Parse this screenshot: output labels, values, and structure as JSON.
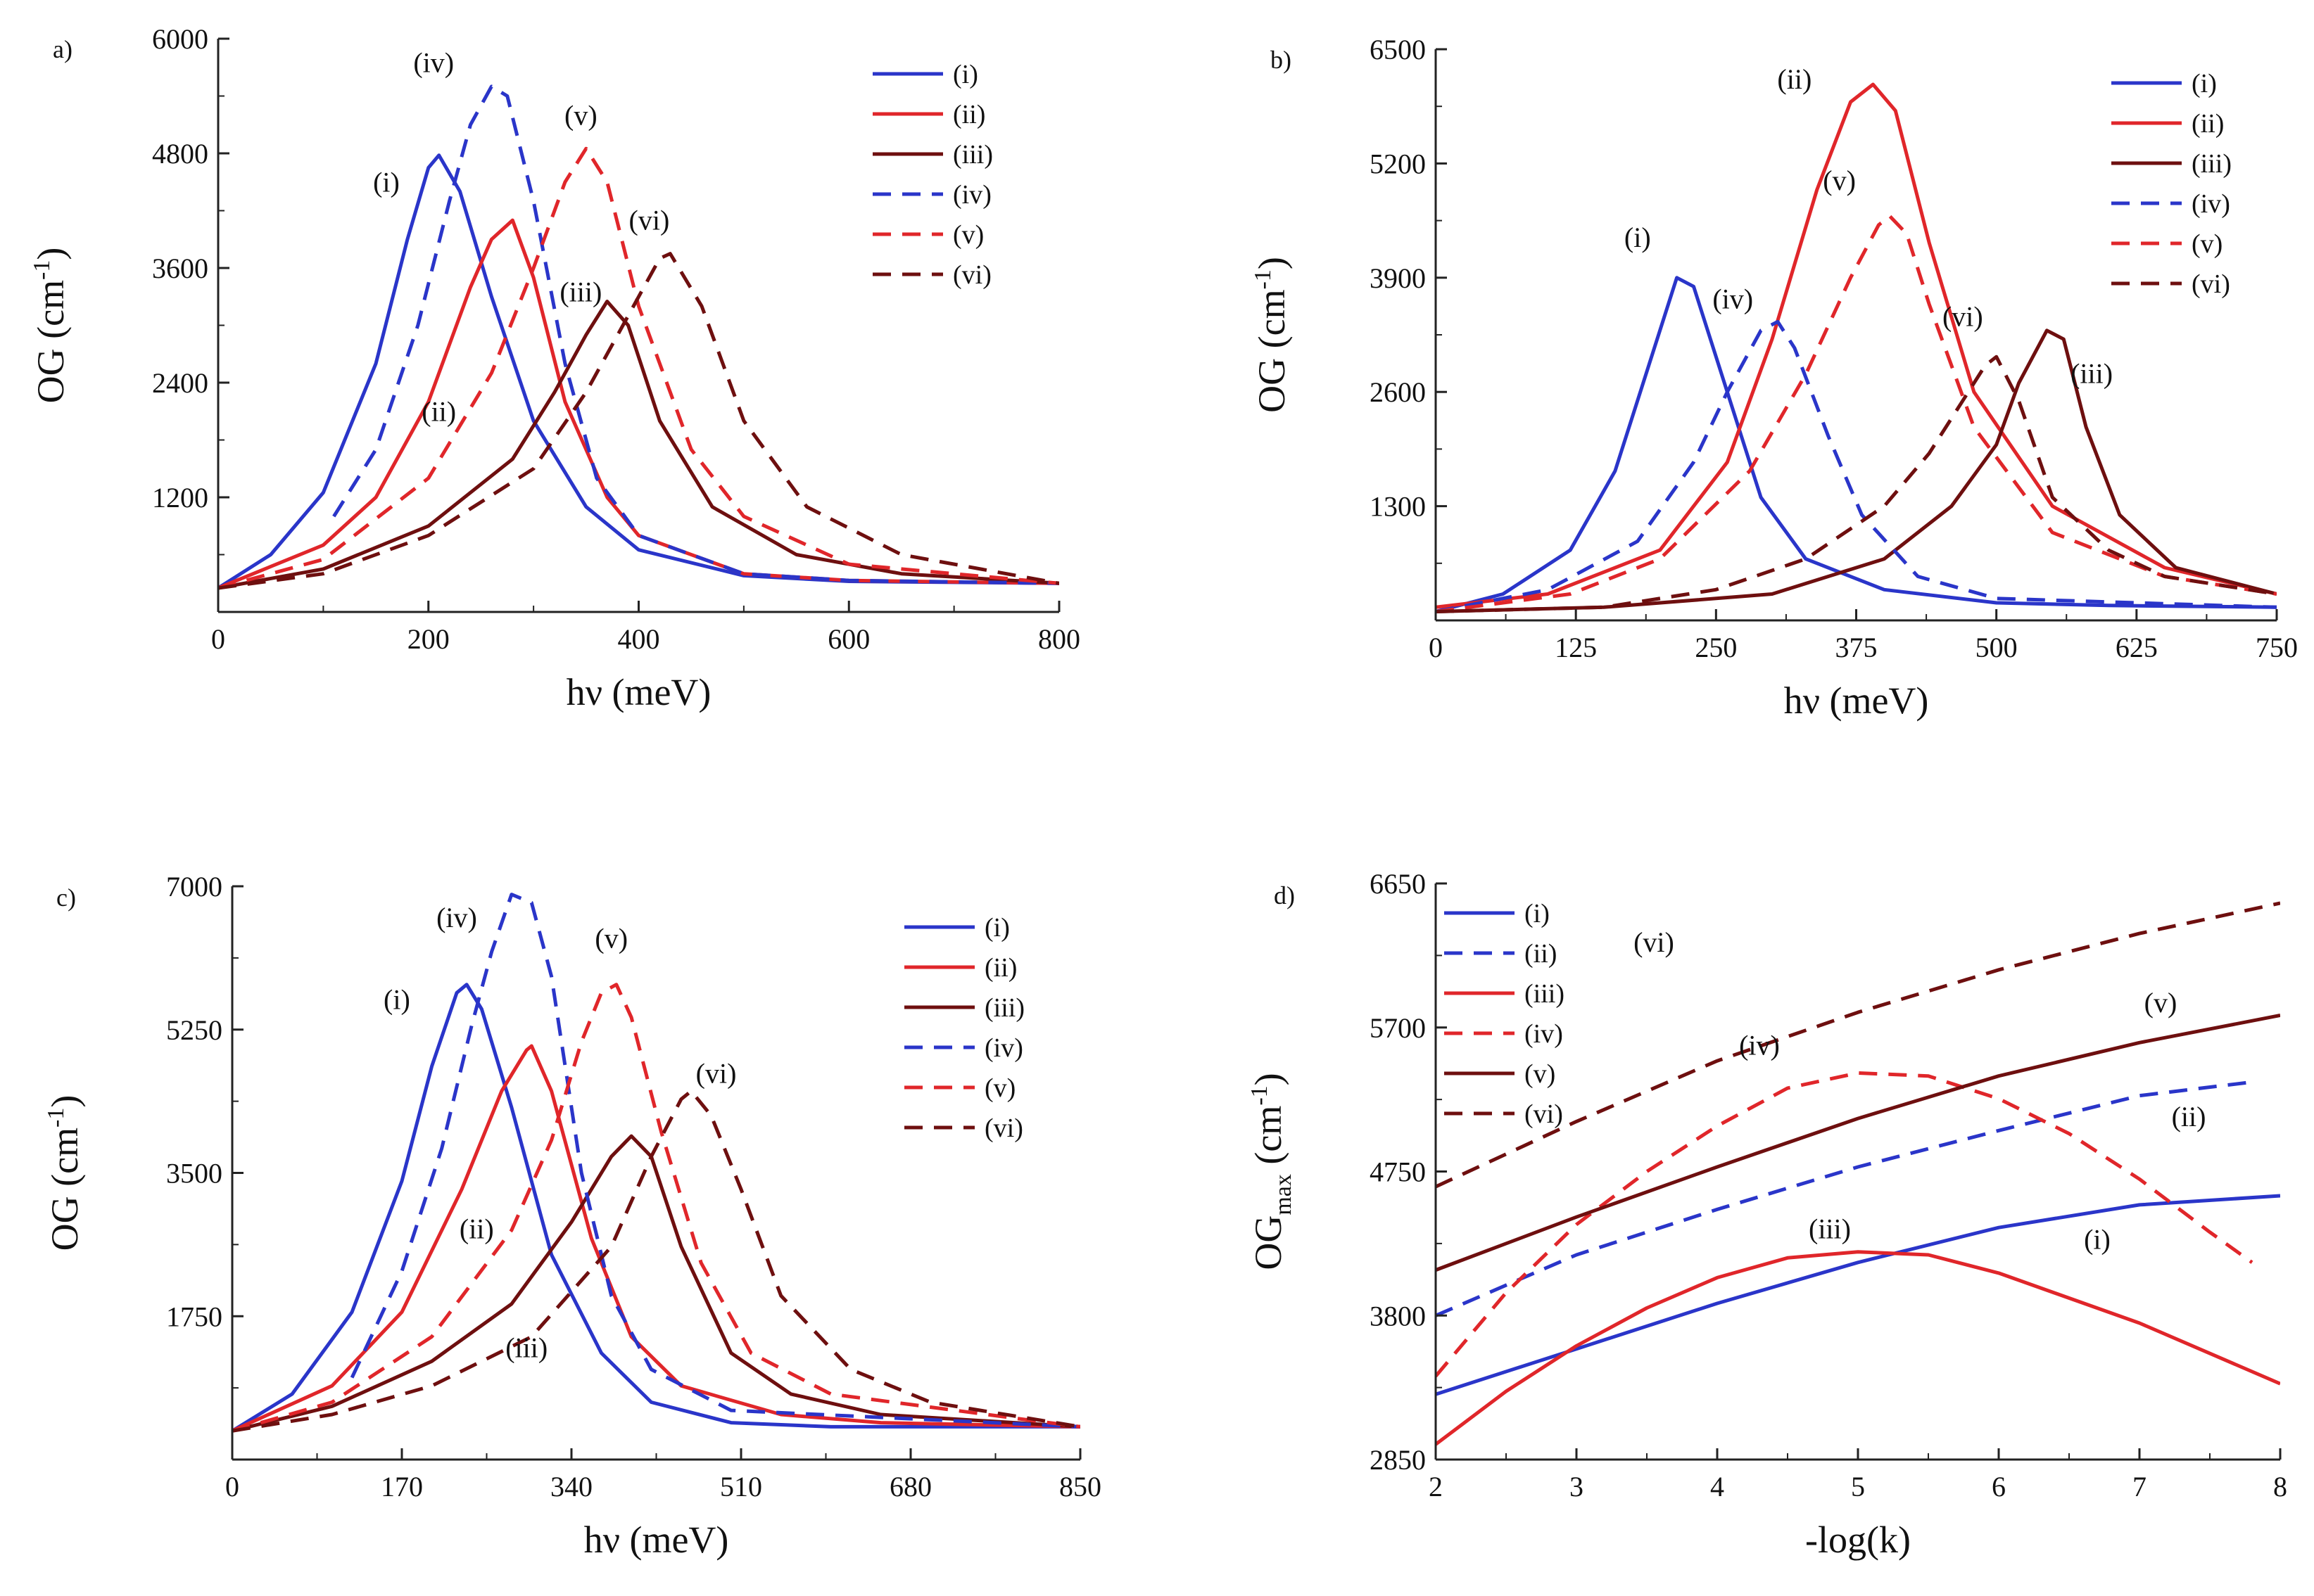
{
  "figure": {
    "colors": {
      "blue": "#2a35c9",
      "red": "#e0262a",
      "darkred": "#6e0f0f",
      "axis": "#222222"
    }
  },
  "chart_data": [
    {
      "panel": "a)",
      "type": "line",
      "xlabel": "hν (meV)",
      "ylabel": "OG (cm",
      "ylabel_sup": "-1",
      "ylabel_tail": ")",
      "xlim": [
        0,
        800
      ],
      "ylim": [
        0,
        6000
      ],
      "xticks": [
        0,
        200,
        400,
        600,
        800
      ],
      "yticks": [
        1200,
        2400,
        3600,
        4800,
        6000
      ],
      "legend_position": "top-right",
      "series": [
        {
          "name": "(i)",
          "color": "blue",
          "dash": false,
          "x": [
            0,
            50,
            100,
            150,
            180,
            200,
            210,
            230,
            260,
            300,
            350,
            400,
            500,
            600,
            800
          ],
          "y": [
            250,
            600,
            1250,
            2600,
            3900,
            4650,
            4780,
            4400,
            3300,
            2000,
            1100,
            650,
            380,
            320,
            300
          ]
        },
        {
          "name": "(ii)",
          "color": "red",
          "dash": false,
          "x": [
            0,
            100,
            150,
            200,
            240,
            260,
            280,
            300,
            330,
            370,
            400,
            500,
            600,
            800
          ],
          "y": [
            250,
            700,
            1200,
            2200,
            3400,
            3900,
            4100,
            3500,
            2200,
            1200,
            800,
            400,
            330,
            300
          ]
        },
        {
          "name": "(iii)",
          "color": "darkred",
          "dash": false,
          "x": [
            0,
            100,
            200,
            280,
            320,
            350,
            370,
            390,
            420,
            470,
            550,
            650,
            800
          ],
          "y": [
            250,
            450,
            900,
            1600,
            2300,
            2900,
            3250,
            3000,
            2000,
            1100,
            600,
            400,
            300
          ]
        },
        {
          "name": "(iv)",
          "color": "blue",
          "dash": true,
          "x": [
            110,
            150,
            190,
            220,
            240,
            260,
            275,
            300,
            330,
            360,
            400,
            500,
            600,
            800
          ],
          "y": [
            1000,
            1700,
            3000,
            4300,
            5100,
            5500,
            5400,
            4300,
            2600,
            1400,
            800,
            400,
            330,
            300
          ]
        },
        {
          "name": "(v)",
          "color": "red",
          "dash": true,
          "x": [
            0,
            100,
            200,
            260,
            300,
            330,
            350,
            370,
            400,
            450,
            500,
            600,
            800
          ],
          "y": [
            250,
            550,
            1400,
            2500,
            3600,
            4500,
            4850,
            4500,
            3200,
            1700,
            1000,
            500,
            300
          ]
        },
        {
          "name": "(vi)",
          "color": "darkred",
          "dash": true,
          "x": [
            0,
            100,
            200,
            300,
            350,
            390,
            420,
            430,
            460,
            500,
            560,
            650,
            800
          ],
          "y": [
            250,
            400,
            800,
            1500,
            2300,
            3100,
            3700,
            3750,
            3200,
            2000,
            1100,
            600,
            300
          ]
        }
      ],
      "annotations": [
        {
          "text": "(i)",
          "x": 160,
          "y": 4400
        },
        {
          "text": "(iv)",
          "x": 205,
          "y": 5650
        },
        {
          "text": "(v)",
          "x": 345,
          "y": 5100
        },
        {
          "text": "(vi)",
          "x": 410,
          "y": 4000
        },
        {
          "text": "(iii)",
          "x": 345,
          "y": 3250
        },
        {
          "text": "(ii)",
          "x": 210,
          "y": 2000
        }
      ]
    },
    {
      "panel": "b)",
      "type": "line",
      "xlabel": "hν (meV)",
      "ylabel": "OG (cm",
      "ylabel_sup": "-1",
      "ylabel_tail": ")",
      "xlim": [
        0,
        750
      ],
      "ylim": [
        0,
        6500
      ],
      "xticks": [
        0,
        125,
        250,
        375,
        500,
        625,
        750
      ],
      "yticks": [
        1300,
        2600,
        3900,
        5200,
        6500
      ],
      "legend_position": "top-right",
      "series": [
        {
          "name": "(i)",
          "color": "blue",
          "dash": false,
          "x": [
            0,
            60,
            120,
            160,
            190,
            215,
            230,
            260,
            290,
            330,
            400,
            500,
            600,
            750
          ],
          "y": [
            100,
            300,
            800,
            1700,
            2900,
            3900,
            3800,
            2600,
            1400,
            700,
            350,
            200,
            170,
            150
          ]
        },
        {
          "name": "(ii)",
          "color": "red",
          "dash": false,
          "x": [
            0,
            100,
            200,
            260,
            300,
            340,
            370,
            390,
            410,
            440,
            480,
            550,
            650,
            750
          ],
          "y": [
            150,
            300,
            800,
            1800,
            3200,
            4900,
            5900,
            6100,
            5800,
            4300,
            2600,
            1300,
            600,
            300
          ]
        },
        {
          "name": "(iii)",
          "color": "darkred",
          "dash": false,
          "x": [
            0,
            150,
            300,
            400,
            460,
            500,
            520,
            545,
            560,
            580,
            610,
            660,
            750
          ],
          "y": [
            100,
            150,
            300,
            700,
            1300,
            2000,
            2700,
            3300,
            3200,
            2200,
            1200,
            600,
            300
          ]
        },
        {
          "name": "(iv)",
          "color": "blue",
          "dash": true,
          "x": [
            0,
            100,
            180,
            230,
            260,
            290,
            305,
            320,
            350,
            380,
            430,
            500,
            750
          ],
          "y": [
            100,
            350,
            900,
            1800,
            2600,
            3300,
            3400,
            3100,
            2100,
            1200,
            500,
            250,
            150
          ]
        },
        {
          "name": "(v)",
          "color": "red",
          "dash": true,
          "x": [
            0,
            120,
            200,
            280,
            330,
            370,
            395,
            405,
            420,
            440,
            480,
            550,
            650,
            750
          ],
          "y": [
            100,
            300,
            700,
            1700,
            2800,
            3900,
            4500,
            4600,
            4400,
            3600,
            2200,
            1000,
            500,
            300
          ]
        },
        {
          "name": "(vi)",
          "color": "darkred",
          "dash": true,
          "x": [
            0,
            150,
            250,
            330,
            400,
            440,
            470,
            490,
            500,
            520,
            550,
            600,
            650,
            750
          ],
          "y": [
            100,
            150,
            350,
            700,
            1300,
            1900,
            2500,
            2900,
            3000,
            2500,
            1400,
            800,
            500,
            300
          ]
        }
      ],
      "annotations": [
        {
          "text": "(ii)",
          "x": 320,
          "y": 6050
        },
        {
          "text": "(v)",
          "x": 360,
          "y": 4900
        },
        {
          "text": "(i)",
          "x": 180,
          "y": 4250
        },
        {
          "text": "(iv)",
          "x": 265,
          "y": 3550
        },
        {
          "text": "(vi)",
          "x": 470,
          "y": 3350
        },
        {
          "text": "(iii)",
          "x": 585,
          "y": 2700
        }
      ]
    },
    {
      "panel": "c)",
      "type": "line",
      "xlabel": "hν (meV)",
      "ylabel": "OG (cm",
      "ylabel_sup": "-1",
      "ylabel_tail": ")",
      "xlim": [
        0,
        850
      ],
      "ylim": [
        0,
        7000
      ],
      "xticks": [
        0,
        170,
        340,
        510,
        680,
        850
      ],
      "yticks": [
        1750,
        3500,
        5250,
        7000
      ],
      "legend_position": "top-right",
      "series": [
        {
          "name": "(i)",
          "color": "blue",
          "dash": false,
          "x": [
            0,
            60,
            120,
            170,
            200,
            225,
            235,
            250,
            280,
            320,
            370,
            420,
            500,
            600,
            850
          ],
          "y": [
            350,
            800,
            1800,
            3400,
            4800,
            5700,
            5800,
            5500,
            4300,
            2500,
            1300,
            700,
            450,
            400,
            400
          ]
        },
        {
          "name": "(ii)",
          "color": "red",
          "dash": false,
          "x": [
            0,
            100,
            170,
            230,
            270,
            295,
            300,
            320,
            360,
            400,
            450,
            550,
            650,
            850
          ],
          "y": [
            350,
            900,
            1800,
            3300,
            4500,
            5000,
            5050,
            4500,
            2700,
            1500,
            900,
            550,
            450,
            400
          ]
        },
        {
          "name": "(iii)",
          "color": "darkred",
          "dash": false,
          "x": [
            0,
            100,
            200,
            280,
            340,
            380,
            400,
            420,
            450,
            500,
            560,
            650,
            850
          ],
          "y": [
            350,
            650,
            1200,
            1900,
            2900,
            3700,
            3950,
            3700,
            2600,
            1300,
            800,
            550,
            400
          ]
        },
        {
          "name": "(iv)",
          "color": "blue",
          "dash": true,
          "x": [
            120,
            170,
            210,
            240,
            260,
            280,
            300,
            320,
            350,
            380,
            420,
            500,
            850
          ],
          "y": [
            1000,
            2300,
            3800,
            5300,
            6200,
            6900,
            6800,
            5900,
            3500,
            2000,
            1100,
            600,
            400
          ]
        },
        {
          "name": "(v)",
          "color": "red",
          "dash": true,
          "x": [
            0,
            100,
            200,
            280,
            320,
            350,
            370,
            385,
            400,
            430,
            470,
            520,
            600,
            850
          ],
          "y": [
            350,
            700,
            1500,
            2800,
            3900,
            5100,
            5700,
            5800,
            5400,
            4000,
            2400,
            1300,
            800,
            400
          ]
        },
        {
          "name": "(vi)",
          "color": "darkred",
          "dash": true,
          "x": [
            0,
            100,
            200,
            300,
            380,
            420,
            450,
            460,
            480,
            510,
            550,
            620,
            700,
            850
          ],
          "y": [
            350,
            550,
            900,
            1500,
            2600,
            3700,
            4400,
            4500,
            4200,
            3300,
            2000,
            1100,
            700,
            400
          ]
        }
      ],
      "annotations": [
        {
          "text": "(iv)",
          "x": 225,
          "y": 6500
        },
        {
          "text": "(v)",
          "x": 380,
          "y": 6250
        },
        {
          "text": "(i)",
          "x": 165,
          "y": 5500
        },
        {
          "text": "(vi)",
          "x": 485,
          "y": 4600
        },
        {
          "text": "(ii)",
          "x": 245,
          "y": 2700
        },
        {
          "text": "(iii)",
          "x": 295,
          "y": 1250
        }
      ]
    },
    {
      "panel": "d)",
      "type": "line",
      "xlabel": "-log(k)",
      "ylabel": "OG",
      "ylabel_sub": "max",
      "ylabel_tail": " (cm",
      "ylabel_sup": "-1",
      "ylabel_end": ")",
      "xlim": [
        2,
        8
      ],
      "ylim": [
        2850,
        6650
      ],
      "xticks": [
        2,
        3,
        4,
        5,
        6,
        7,
        8
      ],
      "yticks": [
        2850,
        3800,
        4750,
        5700,
        6650
      ],
      "legend_position": "top-left",
      "series": [
        {
          "name": "(i)",
          "color": "blue",
          "dash": false,
          "x": [
            2,
            3,
            4,
            5,
            6,
            7,
            8
          ],
          "y": [
            3280,
            3580,
            3880,
            4150,
            4380,
            4530,
            4590
          ]
        },
        {
          "name": "(ii)",
          "color": "blue",
          "dash": true,
          "x": [
            2,
            3,
            4,
            5,
            6,
            7,
            7.8
          ],
          "y": [
            3800,
            4200,
            4500,
            4780,
            5020,
            5250,
            5340
          ]
        },
        {
          "name": "(iii)",
          "color": "red",
          "dash": false,
          "x": [
            2,
            2.5,
            3,
            3.5,
            4,
            4.5,
            5,
            5.5,
            6,
            7,
            8
          ],
          "y": [
            2950,
            3300,
            3600,
            3850,
            4050,
            4180,
            4220,
            4200,
            4080,
            3750,
            3350
          ]
        },
        {
          "name": "(iv)",
          "color": "red",
          "dash": true,
          "x": [
            2,
            2.5,
            3,
            3.5,
            4,
            4.5,
            5,
            5.5,
            6,
            6.5,
            7,
            7.5,
            7.8
          ],
          "y": [
            3400,
            3950,
            4400,
            4750,
            5050,
            5300,
            5400,
            5380,
            5230,
            5000,
            4700,
            4350,
            4150
          ]
        },
        {
          "name": "(v)",
          "color": "darkred",
          "dash": false,
          "x": [
            2,
            3,
            4,
            5,
            6,
            7,
            8
          ],
          "y": [
            4100,
            4450,
            4780,
            5100,
            5380,
            5600,
            5780
          ]
        },
        {
          "name": "(vi)",
          "color": "darkred",
          "dash": true,
          "x": [
            2,
            3,
            4,
            5,
            6,
            7,
            8
          ],
          "y": [
            4650,
            5080,
            5480,
            5800,
            6080,
            6320,
            6520
          ]
        }
      ],
      "annotations": [
        {
          "text": "(vi)",
          "x": 3.55,
          "y": 6200
        },
        {
          "text": "(v)",
          "x": 7.15,
          "y": 5800
        },
        {
          "text": "(iv)",
          "x": 4.3,
          "y": 5520
        },
        {
          "text": "(ii)",
          "x": 7.35,
          "y": 5050
        },
        {
          "text": "(iii)",
          "x": 4.8,
          "y": 4310
        },
        {
          "text": "(i)",
          "x": 6.7,
          "y": 4240
        }
      ]
    }
  ]
}
